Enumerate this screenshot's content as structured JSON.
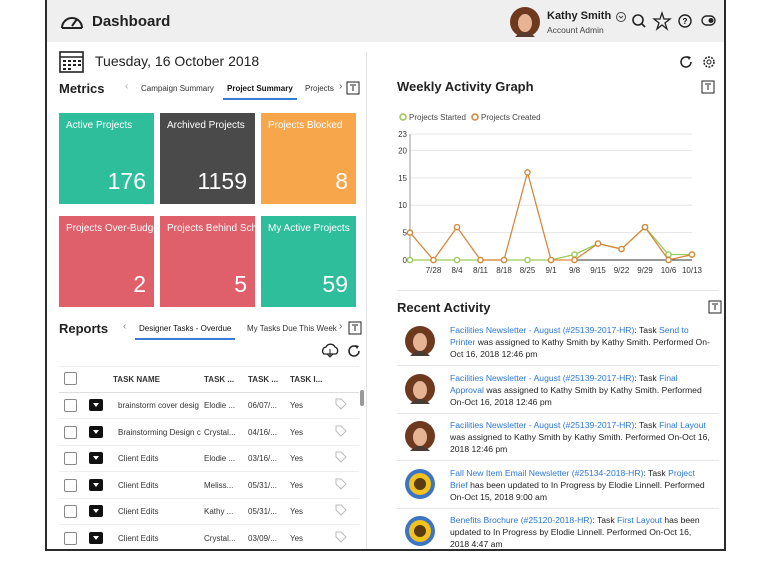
{
  "header": {
    "title": "Dashboard",
    "user_name": "Kathy Smith",
    "user_role": "Account Admin"
  },
  "date": "Tuesday, 16 October 2018",
  "metrics": {
    "title": "Metrics",
    "tabs": [
      "Campaign Summary",
      "Project Summary",
      "Projects"
    ],
    "tiles": [
      {
        "label": "Active Projects",
        "value": 176,
        "color": "#2fbe9c"
      },
      {
        "label": "Archived Projects",
        "value": 1159,
        "color": "#4a4a4a"
      },
      {
        "label": "Projects Blocked",
        "value": 8,
        "color": "#f7a64c"
      },
      {
        "label": "Projects Over-Budget",
        "value": 2,
        "color": "#df5f6b"
      },
      {
        "label": "Projects Behind Schedule",
        "value": 5,
        "color": "#df5f6b"
      },
      {
        "label": "My Active Projects",
        "value": 59,
        "color": "#2fbe9c"
      }
    ]
  },
  "reports": {
    "title": "Reports",
    "tabs": [
      "Designer Tasks - Overdue",
      "My Tasks Due This Week"
    ],
    "columns": [
      "TASK NAME",
      "TASK ...",
      "TASK ...",
      "TASK I..."
    ],
    "rows": [
      [
        "brainstorm cover desig",
        "Elodie ...",
        "06/07/...",
        "Yes"
      ],
      [
        "Brainstorming Design c",
        "Crystal...",
        "04/16/...",
        "Yes"
      ],
      [
        "Client Edits",
        "Elodie ...",
        "03/16/...",
        "Yes"
      ],
      [
        "Client Edits",
        "Meliss...",
        "05/31/...",
        "Yes"
      ],
      [
        "Client Edits",
        "Kathy ...",
        "05/31/...",
        "Yes"
      ],
      [
        "Client Edits",
        "Crystal...",
        "03/09/...",
        "Yes"
      ]
    ]
  },
  "chart_data": {
    "type": "line",
    "title": "Weekly Activity Graph",
    "categories": [
      null,
      "7/28",
      "8/4",
      "8/11",
      "8/18",
      "8/25",
      "9/1",
      "9/8",
      "9/15",
      "9/22",
      "9/29",
      "10/6",
      "10/13"
    ],
    "series": [
      {
        "name": "Projects Started",
        "color": "#9cc95a",
        "values": [
          0,
          0,
          0,
          0,
          0,
          0,
          0,
          1,
          3,
          2,
          6,
          1,
          1
        ]
      },
      {
        "name": "Projects Created",
        "color": "#d5893c",
        "values": [
          5,
          0,
          6,
          0,
          0,
          16,
          0,
          0,
          3,
          2,
          6,
          0,
          1
        ]
      }
    ],
    "ylim": [
      0,
      23
    ],
    "yticks": [
      0,
      5,
      10,
      15,
      20,
      23
    ],
    "grid": true
  },
  "activity": {
    "title": "Recent Activity",
    "items": [
      {
        "link": "Facilities Newsletter - August (#25139-2017-HR)",
        "connector": ": Task",
        "task": "Send to Printer",
        "rest": "was assigned to Kathy Smith by Kathy Smith. Performed On-Oct 16, 2018 12:46 pm"
      },
      {
        "link": "Facilities Newsletter - August (#25139-2017-HR)",
        "connector": ": Task",
        "task": "Final Approval",
        "rest": "was assigned to Kathy Smith by Kathy Smith. Performed On-Oct 16, 2018 12:46 pm"
      },
      {
        "link": "Facilities Newsletter - August (#25139-2017-HR)",
        "connector": ": Task",
        "task": "Final Layout",
        "rest": "was assigned to Kathy Smith by Kathy Smith. Performed On-Oct 16, 2018 12:46 pm"
      },
      {
        "link": "Fall New Item Email Newsletter (#25134-2018-HR)",
        "connector": ": Task",
        "task": "Project Brief",
        "rest": "has been updated to In Progress by Elodie Linnell. Performed On-Oct 15, 2018 9:00 am"
      },
      {
        "link": "Benefits Brochure (#25120-2018-HR)",
        "connector": ": Task",
        "task": "First Layout",
        "rest": "has been updated to In Progress by Elodie Linnell. Performed On-Oct 16, 2018 4:47 am"
      }
    ]
  }
}
